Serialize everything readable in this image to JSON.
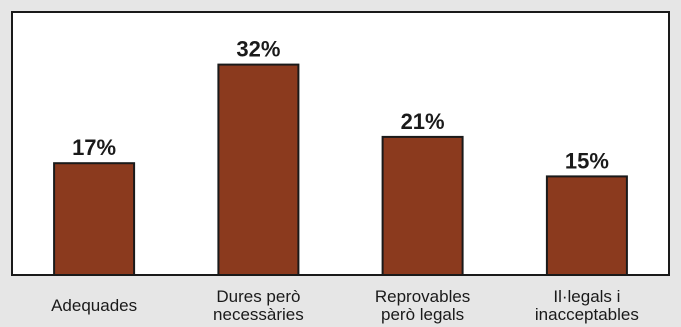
{
  "chart_data": {
    "type": "bar",
    "categories": [
      [
        "Adequades"
      ],
      [
        "Dures però",
        "necessàries"
      ],
      [
        "Reprovables",
        "però legals"
      ],
      [
        "Il·legals i",
        "inacceptables"
      ]
    ],
    "values": [
      17,
      32,
      21,
      15
    ],
    "value_labels": [
      "17%",
      "32%",
      "21%",
      "15%"
    ],
    "unit": "%",
    "ylim": [
      0,
      40
    ],
    "grid": false,
    "legend": "none",
    "bar_color": "#8b3a1e",
    "background_color": "#e6e6e6",
    "plot_background_color": "#ffffff"
  }
}
